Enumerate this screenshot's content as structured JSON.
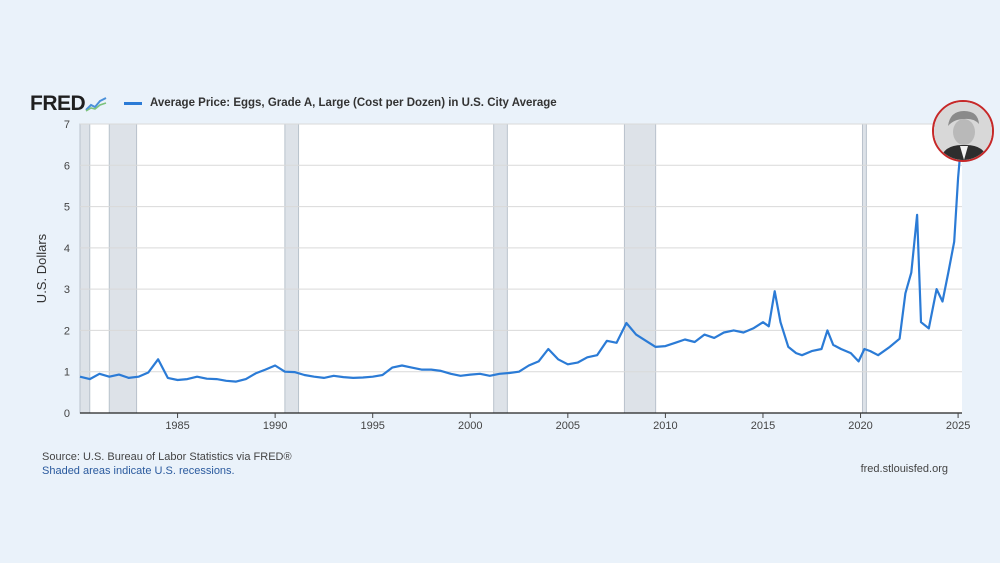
{
  "brand": {
    "logo": "FRED"
  },
  "legend": {
    "label": "Average Price: Eggs, Grade A, Large (Cost per Dozen) in U.S. City Average"
  },
  "footer": {
    "source": "Source: U.S. Bureau of Labor Statistics via FRED®",
    "note": "Shaded areas indicate U.S. recessions.",
    "site": "fred.stlouisfed.org"
  },
  "colors": {
    "line": "#2b7bd6",
    "recession": "#dde2e8",
    "grid": "#d9d9d9"
  },
  "chart_data": {
    "type": "line",
    "title": "Average Price: Eggs, Grade A, Large (Cost per Dozen) in U.S. City Average",
    "xlabel": "",
    "ylabel": "U.S. Dollars",
    "xlim": [
      1980.0,
      2025.2
    ],
    "ylim": [
      0,
      7
    ],
    "xticks": [
      1985,
      1990,
      1995,
      2000,
      2005,
      2010,
      2015,
      2020,
      2025
    ],
    "yticks": [
      0,
      1,
      2,
      3,
      4,
      5,
      6,
      7
    ],
    "recessions": [
      [
        1980.0,
        1980.5
      ],
      [
        1981.5,
        1982.9
      ],
      [
        1990.5,
        1991.2
      ],
      [
        2001.2,
        2001.9
      ],
      [
        2007.9,
        2009.5
      ],
      [
        2020.1,
        2020.3
      ]
    ],
    "series": [
      {
        "name": "Average Price: Eggs, Grade A, Large (Cost per Dozen) in U.S. City Average",
        "x": [
          1980.0,
          1980.5,
          1981.0,
          1981.5,
          1982.0,
          1982.5,
          1983.0,
          1983.5,
          1984.0,
          1984.5,
          1985.0,
          1985.5,
          1986.0,
          1986.5,
          1987.0,
          1987.5,
          1988.0,
          1988.5,
          1989.0,
          1989.5,
          1990.0,
          1990.5,
          1991.0,
          1991.5,
          1992.0,
          1992.5,
          1993.0,
          1993.5,
          1994.0,
          1994.5,
          1995.0,
          1995.5,
          1996.0,
          1996.5,
          1997.0,
          1997.5,
          1998.0,
          1998.5,
          1999.0,
          1999.5,
          2000.0,
          2000.5,
          2001.0,
          2001.5,
          2002.0,
          2002.5,
          2003.0,
          2003.5,
          2004.0,
          2004.5,
          2005.0,
          2005.5,
          2006.0,
          2006.5,
          2007.0,
          2007.5,
          2008.0,
          2008.5,
          2009.0,
          2009.5,
          2010.0,
          2010.5,
          2011.0,
          2011.5,
          2012.0,
          2012.5,
          2013.0,
          2013.5,
          2014.0,
          2014.5,
          2015.0,
          2015.3,
          2015.6,
          2015.9,
          2016.3,
          2016.7,
          2017.0,
          2017.5,
          2018.0,
          2018.3,
          2018.6,
          2019.0,
          2019.5,
          2019.9,
          2020.2,
          2020.5,
          2020.9,
          2021.5,
          2022.0,
          2022.3,
          2022.6,
          2022.9,
          2023.1,
          2023.5,
          2023.9,
          2024.2,
          2024.5,
          2024.8,
          2025.0,
          2025.1
        ],
        "values": [
          0.88,
          0.82,
          0.95,
          0.88,
          0.93,
          0.85,
          0.88,
          0.98,
          1.3,
          0.85,
          0.8,
          0.82,
          0.88,
          0.83,
          0.82,
          0.78,
          0.76,
          0.82,
          0.96,
          1.05,
          1.15,
          1.0,
          0.99,
          0.92,
          0.88,
          0.85,
          0.9,
          0.87,
          0.85,
          0.86,
          0.88,
          0.92,
          1.1,
          1.15,
          1.1,
          1.05,
          1.05,
          1.02,
          0.95,
          0.9,
          0.93,
          0.95,
          0.9,
          0.95,
          0.97,
          1.0,
          1.15,
          1.25,
          1.55,
          1.3,
          1.18,
          1.22,
          1.35,
          1.4,
          1.75,
          1.7,
          2.18,
          1.9,
          1.75,
          1.6,
          1.62,
          1.7,
          1.78,
          1.72,
          1.9,
          1.82,
          1.95,
          2.0,
          1.95,
          2.05,
          2.2,
          2.1,
          2.95,
          2.2,
          1.6,
          1.45,
          1.4,
          1.5,
          1.55,
          2.0,
          1.65,
          1.55,
          1.45,
          1.25,
          1.55,
          1.5,
          1.4,
          1.6,
          1.8,
          2.9,
          3.4,
          4.8,
          2.2,
          2.05,
          3.0,
          2.7,
          3.4,
          4.15,
          5.7,
          6.23
        ]
      }
    ]
  }
}
